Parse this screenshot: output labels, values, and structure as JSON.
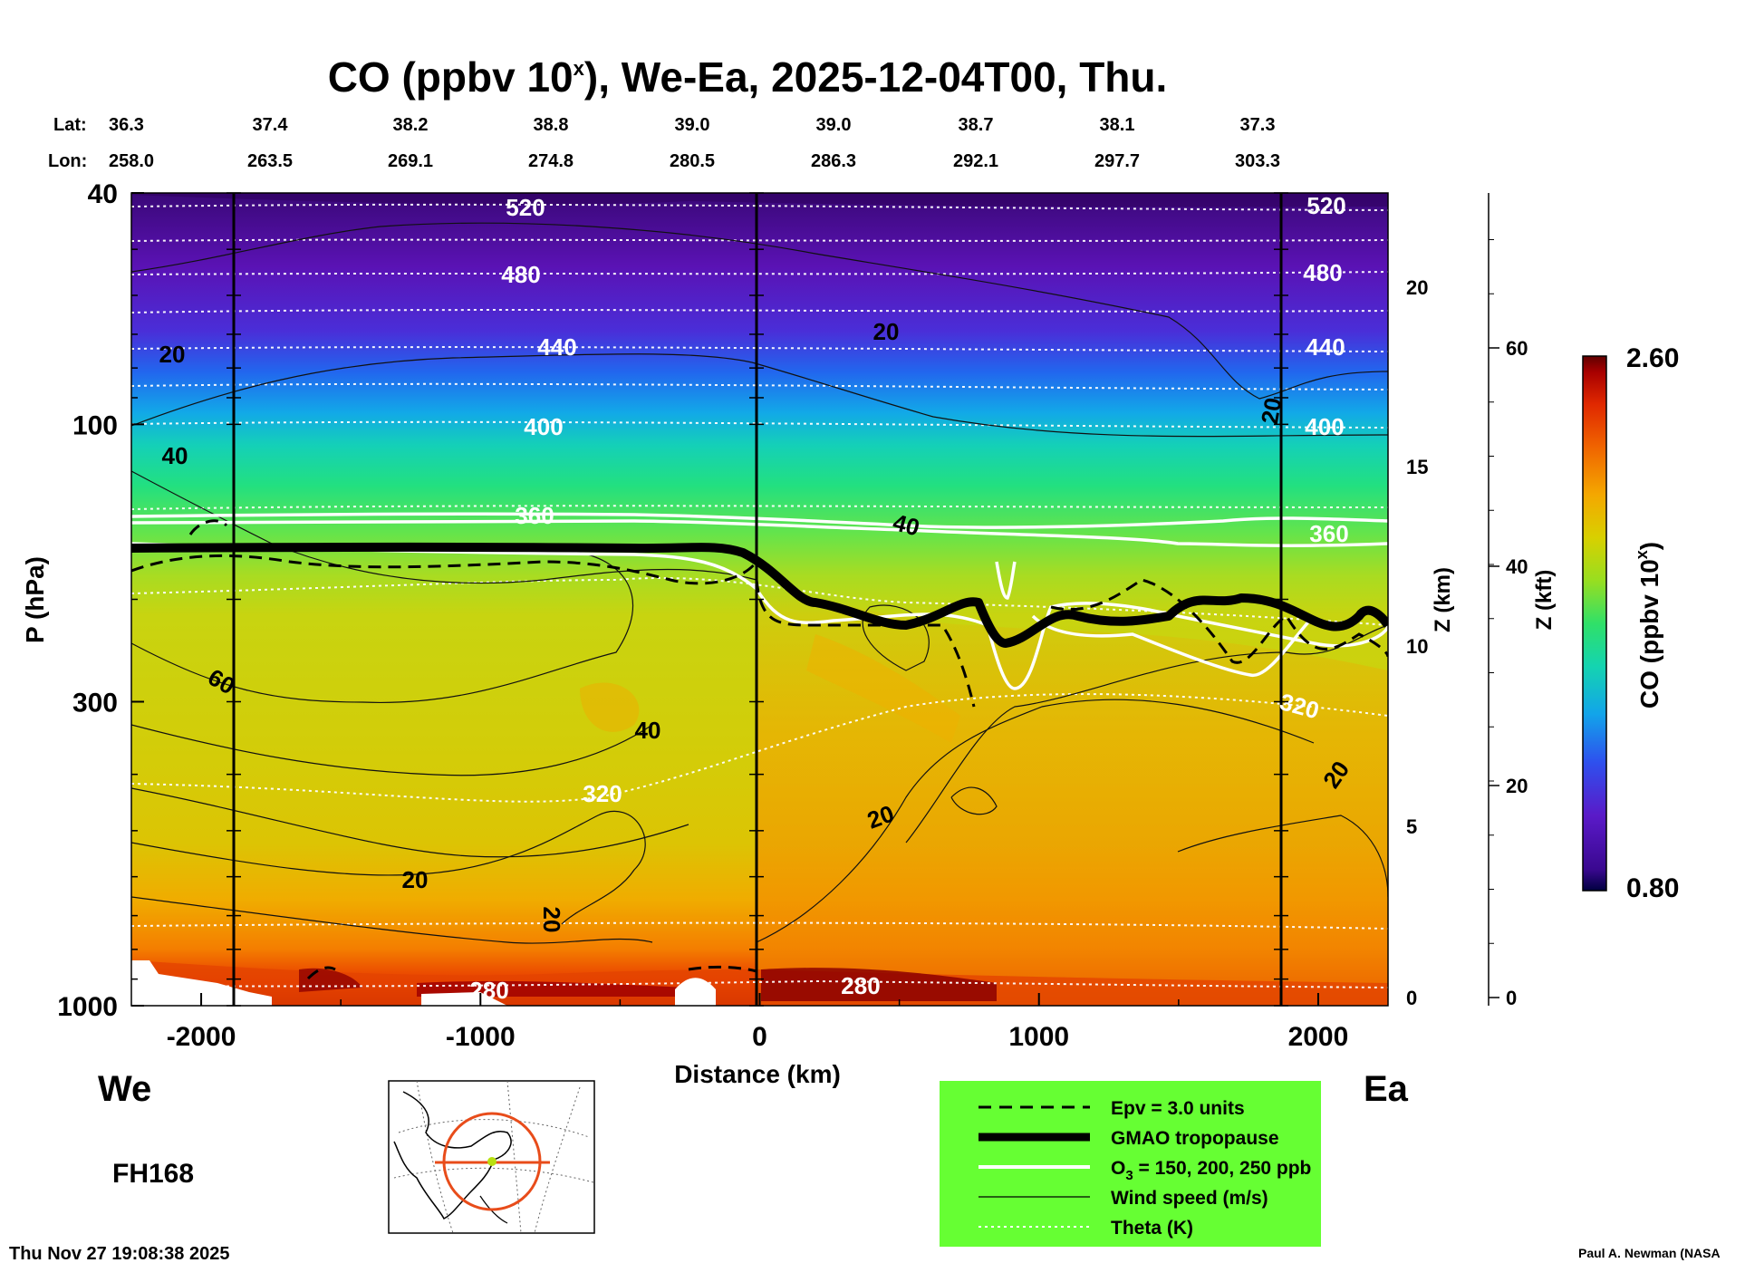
{
  "chart_data": {
    "type": "heatmap",
    "title": {
      "main": "CO (ppbv 10",
      "sup": "x",
      "rest": "), We-Ea, 2025-12-04T00, Thu."
    },
    "latlon": {
      "lat_label": "Lat:",
      "lon_label": "Lon:",
      "points": [
        {
          "lat": "36.3",
          "lon": "258.0"
        },
        {
          "lat": "37.4",
          "lon": "263.5"
        },
        {
          "lat": "38.2",
          "lon": "269.1"
        },
        {
          "lat": "38.8",
          "lon": "274.8"
        },
        {
          "lat": "39.0",
          "lon": "280.5"
        },
        {
          "lat": "39.0",
          "lon": "286.3"
        },
        {
          "lat": "38.7",
          "lon": "292.1"
        },
        {
          "lat": "38.1",
          "lon": "297.7"
        },
        {
          "lat": "37.3",
          "lon": "303.3"
        }
      ]
    },
    "xaxis": {
      "label": "Distance (km)",
      "range": [
        -2250,
        2250
      ],
      "ticks": [
        "-2000",
        "-1000",
        "0",
        "1000",
        "2000"
      ],
      "tick_values": [
        -2000,
        -1000,
        0,
        1000,
        2000
      ]
    },
    "yaxis": {
      "label": "P (hPa)",
      "range": [
        1000,
        40
      ],
      "scale": "log",
      "ticks": [
        "40",
        "100",
        "300",
        "1000"
      ],
      "tick_values": [
        40,
        100,
        300,
        1000
      ]
    },
    "zkm_axis": {
      "label": "Z (km)",
      "ticks": [
        "20",
        "15",
        "10",
        "5",
        "0"
      ],
      "tick_values": [
        20,
        15,
        10,
        5,
        0
      ]
    },
    "zkft_axis": {
      "label": "Z (kft)",
      "ticks": [
        "60",
        "40",
        "20",
        "0"
      ],
      "tick_values": [
        60,
        40,
        20,
        0
      ]
    },
    "colorbar": {
      "label": "CO (ppbv 10",
      "label_sup": "x",
      "label_end": ")",
      "max": "2.60",
      "min": "0.80",
      "colors": [
        "#2a0060",
        "#5a10b0",
        "#2a48e8",
        "#10b0e8",
        "#18d8a0",
        "#40e860",
        "#a8e020",
        "#d8d000",
        "#f4a800",
        "#f06a00",
        "#e02a00",
        "#a00000",
        "#600000"
      ]
    },
    "theta_labels": [
      "520",
      "520",
      "480",
      "480",
      "440",
      "440",
      "400",
      "400",
      "360",
      "360",
      "320",
      "320",
      "280",
      "280"
    ],
    "wind_labels": [
      "20",
      "20",
      "20",
      "40",
      "40",
      "60",
      "40",
      "20",
      "20",
      "20",
      "20"
    ],
    "side_labels": {
      "west": "We",
      "east": "Ea"
    },
    "forecast_hour": "FH168",
    "legend": {
      "items": [
        {
          "style": "dashed",
          "label": "Epv = 3.0 units"
        },
        {
          "style": "thick",
          "label": "GMAO tropopause"
        },
        {
          "style": "white",
          "label_pre": "O",
          "label_sub": "3",
          "label_post": " = 150, 200, 250 ppb"
        },
        {
          "style": "thin",
          "label": "Wind speed (m/s)"
        },
        {
          "style": "dotted",
          "label": "Theta (K)"
        }
      ],
      "bg_color": "#66ff33"
    },
    "timestamp": "Thu Nov 27 19:08:38 2025",
    "credit": "Paul A. Newman (NASA"
  }
}
